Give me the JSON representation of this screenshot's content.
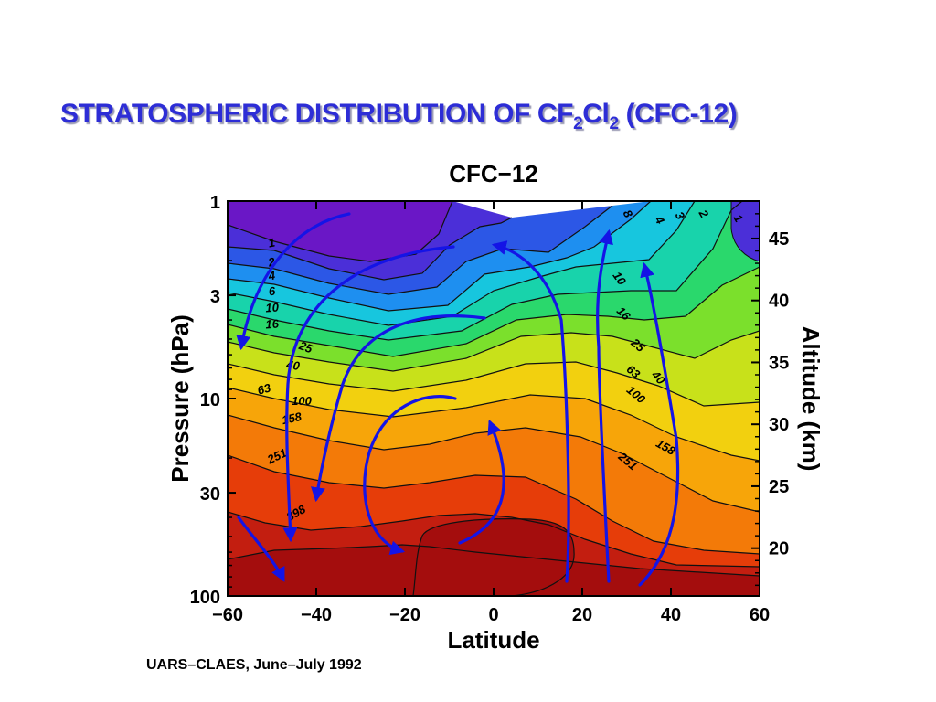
{
  "slide": {
    "title_prefix": "STRATOSPHERIC DISTRIBUTION OF CF",
    "title_sub1": "2",
    "title_mid": "Cl",
    "title_sub2": "2",
    "title_suffix": " (CFC-12)",
    "source": "UARS–CLAES, June–July 1992"
  },
  "chart_data": {
    "type": "heatmap",
    "title": "CFC−12",
    "xlabel": "Latitude",
    "ylabel": "Pressure (hPa)",
    "y2label": "Altitude (km)",
    "xlim": [
      -60,
      60
    ],
    "x_ticks": [
      -60,
      -40,
      -20,
      0,
      20,
      40,
      60
    ],
    "x_tick_labels": [
      "−60",
      "−40",
      "−20",
      "0",
      "20",
      "40",
      "60"
    ],
    "ylim": [
      100,
      1
    ],
    "y_scale": "log",
    "y_ticks": [
      1,
      3,
      10,
      30,
      100
    ],
    "y_tick_labels": [
      "1",
      "3",
      "10",
      "30",
      "100"
    ],
    "y2_ticks": [
      20,
      25,
      30,
      35,
      40,
      45
    ],
    "contour_levels": [
      1,
      2,
      4,
      6,
      10,
      16,
      25,
      40,
      63,
      100,
      158,
      251,
      398
    ],
    "contour_labels_left": [
      "1",
      "2",
      "4",
      "6",
      "10",
      "16",
      "25",
      "40",
      "63",
      "100",
      "158",
      "251",
      "398"
    ],
    "contour_labels_right": [
      "8",
      "4",
      "3",
      "2",
      "1",
      "10",
      "16",
      "25",
      "40",
      "63",
      "100",
      "158",
      "251"
    ],
    "colors": [
      "#6a17c6",
      "#4b2fd8",
      "#2c57e6",
      "#1e8ff0",
      "#17c6de",
      "#18d3ab",
      "#2ad86c",
      "#7be02c",
      "#c8e11a",
      "#f2d00f",
      "#f7a509",
      "#f37a08",
      "#e63d09",
      "#c31e10",
      "#a40d0d"
    ],
    "circulation_arrow_color": "#1414e6"
  }
}
